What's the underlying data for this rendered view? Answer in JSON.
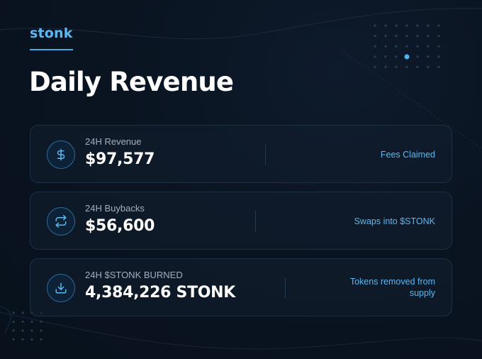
{
  "brand": {
    "name": "stonk"
  },
  "page": {
    "title": "Daily Revenue"
  },
  "colors": {
    "accent": "#5bb8f0",
    "background": "#0a1421",
    "card_border": "#1f2f42"
  },
  "cards": [
    {
      "icon": "dollar-icon",
      "label": "24H Revenue",
      "value": "$97,577",
      "note": "Fees Claimed"
    },
    {
      "icon": "swap-icon",
      "label": "24H Buybacks",
      "value": "$56,600",
      "note": "Swaps into $STONK"
    },
    {
      "icon": "download-icon",
      "label": "24H $STONK BURNED",
      "value": "4,384,226 STONK",
      "note": "Tokens removed from supply"
    }
  ]
}
